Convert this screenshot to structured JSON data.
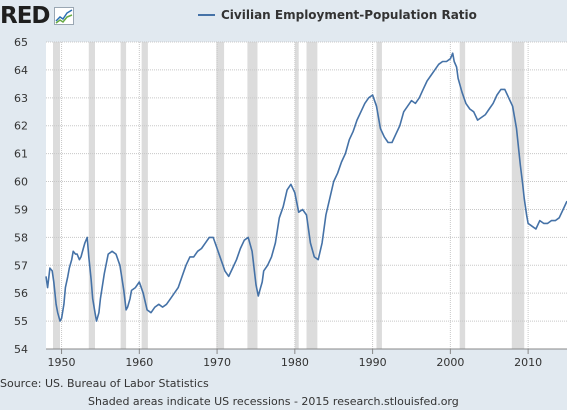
{
  "logo": {
    "text": "RED"
  },
  "chart_data": {
    "type": "line",
    "title": "",
    "xlabel": "",
    "ylabel": "",
    "xlim": [
      1948,
      2015
    ],
    "ylim": [
      54,
      65
    ],
    "xticks": [
      1950,
      1960,
      1970,
      1980,
      1990,
      2000,
      2010
    ],
    "yticks": [
      54,
      55,
      56,
      57,
      58,
      59,
      60,
      61,
      62,
      63,
      64,
      65
    ],
    "grid": true,
    "legend_position": "top-center",
    "series": [
      {
        "name": "Civilian Employment-Population Ratio",
        "color": "#4572a7",
        "x": [
          1948.0,
          1948.2,
          1948.5,
          1948.8,
          1949.0,
          1949.3,
          1949.5,
          1949.8,
          1950.0,
          1950.3,
          1950.5,
          1950.8,
          1951.0,
          1951.3,
          1951.5,
          1951.8,
          1952.0,
          1952.3,
          1952.5,
          1952.8,
          1953.0,
          1953.3,
          1953.5,
          1953.8,
          1954.0,
          1954.3,
          1954.5,
          1954.8,
          1955.0,
          1955.5,
          1956.0,
          1956.5,
          1957.0,
          1957.5,
          1958.0,
          1958.3,
          1958.5,
          1958.8,
          1959.0,
          1959.5,
          1960.0,
          1960.5,
          1961.0,
          1961.5,
          1962.0,
          1962.5,
          1963.0,
          1963.5,
          1964.0,
          1964.5,
          1965.0,
          1965.5,
          1966.0,
          1966.5,
          1967.0,
          1967.5,
          1968.0,
          1968.5,
          1969.0,
          1969.5,
          1970.0,
          1970.5,
          1971.0,
          1971.5,
          1972.0,
          1972.5,
          1973.0,
          1973.5,
          1974.0,
          1974.5,
          1975.0,
          1975.3,
          1975.5,
          1975.8,
          1976.0,
          1976.5,
          1977.0,
          1977.5,
          1978.0,
          1978.5,
          1979.0,
          1979.5,
          1980.0,
          1980.5,
          1981.0,
          1981.5,
          1982.0,
          1982.5,
          1983.0,
          1983.5,
          1984.0,
          1984.5,
          1985.0,
          1985.5,
          1986.0,
          1986.5,
          1987.0,
          1987.5,
          1988.0,
          1988.5,
          1989.0,
          1989.5,
          1990.0,
          1990.5,
          1991.0,
          1991.5,
          1992.0,
          1992.5,
          1993.0,
          1993.5,
          1994.0,
          1994.5,
          1995.0,
          1995.5,
          1996.0,
          1996.5,
          1997.0,
          1997.5,
          1998.0,
          1998.5,
          1999.0,
          1999.5,
          2000.0,
          2000.3,
          2000.5,
          2000.8,
          2001.0,
          2001.5,
          2002.0,
          2002.5,
          2003.0,
          2003.5,
          2004.0,
          2004.5,
          2005.0,
          2005.5,
          2006.0,
          2006.5,
          2007.0,
          2007.5,
          2008.0,
          2008.5,
          2009.0,
          2009.3,
          2009.5,
          2009.8,
          2010.0,
          2010.5,
          2011.0,
          2011.5,
          2012.0,
          2012.5,
          2013.0,
          2013.5,
          2014.0,
          2014.5,
          2015.0
        ],
        "values": [
          56.6,
          56.2,
          56.9,
          56.8,
          56.4,
          55.6,
          55.3,
          55.0,
          55.1,
          55.6,
          56.2,
          56.6,
          56.9,
          57.2,
          57.5,
          57.4,
          57.4,
          57.2,
          57.3,
          57.6,
          57.8,
          58.0,
          57.3,
          56.5,
          55.8,
          55.3,
          55.0,
          55.3,
          55.8,
          56.7,
          57.4,
          57.5,
          57.4,
          57.0,
          56.1,
          55.4,
          55.5,
          55.8,
          56.1,
          56.2,
          56.4,
          56.0,
          55.4,
          55.3,
          55.5,
          55.6,
          55.5,
          55.6,
          55.8,
          56.0,
          56.2,
          56.6,
          57.0,
          57.3,
          57.3,
          57.5,
          57.6,
          57.8,
          58.0,
          58.0,
          57.6,
          57.2,
          56.8,
          56.6,
          56.9,
          57.2,
          57.6,
          57.9,
          58.0,
          57.5,
          56.3,
          55.9,
          56.1,
          56.4,
          56.8,
          57.0,
          57.3,
          57.8,
          58.7,
          59.1,
          59.7,
          59.9,
          59.6,
          58.9,
          59.0,
          58.8,
          57.8,
          57.3,
          57.2,
          57.8,
          58.8,
          59.4,
          60.0,
          60.3,
          60.7,
          61.0,
          61.5,
          61.8,
          62.2,
          62.5,
          62.8,
          63.0,
          63.1,
          62.7,
          61.9,
          61.6,
          61.4,
          61.4,
          61.7,
          62.0,
          62.5,
          62.7,
          62.9,
          62.8,
          63.0,
          63.3,
          63.6,
          63.8,
          64.0,
          64.2,
          64.3,
          64.3,
          64.4,
          64.6,
          64.3,
          64.1,
          63.7,
          63.2,
          62.8,
          62.6,
          62.5,
          62.2,
          62.3,
          62.4,
          62.6,
          62.8,
          63.1,
          63.3,
          63.3,
          63.0,
          62.7,
          61.9,
          60.6,
          59.9,
          59.4,
          58.8,
          58.5,
          58.4,
          58.3,
          58.6,
          58.5,
          58.5,
          58.6,
          58.6,
          58.7,
          59.0,
          59.3
        ]
      }
    ],
    "recessions": [
      [
        1948.9,
        1949.8
      ],
      [
        1953.5,
        1954.3
      ],
      [
        1957.6,
        1958.3
      ],
      [
        1960.3,
        1961.1
      ],
      [
        1969.9,
        1970.9
      ],
      [
        1973.9,
        1975.2
      ],
      [
        1980.0,
        1980.5
      ],
      [
        1981.5,
        1982.9
      ],
      [
        1990.5,
        1991.2
      ],
      [
        2001.2,
        2001.9
      ],
      [
        2007.9,
        2009.5
      ]
    ]
  },
  "footer": {
    "source": "Source: US. Bureau of Labor Statistics",
    "note": "Shaded areas indicate US recessions - 2015 research.stlouisfed.org"
  }
}
